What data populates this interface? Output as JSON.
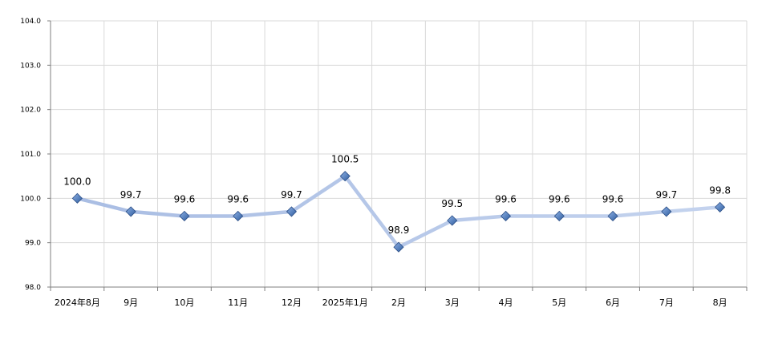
{
  "chart_data": {
    "type": "line",
    "categories": [
      "2024年8月",
      "9月",
      "10月",
      "11月",
      "12月",
      "2025年1月",
      "2月",
      "3月",
      "4月",
      "5月",
      "6月",
      "7月",
      "8月"
    ],
    "values": [
      100.0,
      99.7,
      99.6,
      99.6,
      99.7,
      100.5,
      98.9,
      99.5,
      99.6,
      99.6,
      99.6,
      99.7,
      99.8
    ],
    "value_labels": [
      "100.0",
      "99.7",
      "99.6",
      "99.6",
      "99.7",
      "100.5",
      "98.9",
      "99.5",
      "99.6",
      "99.6",
      "99.6",
      "99.7",
      "99.8"
    ],
    "yticks": [
      "98.0",
      "99.0",
      "100.0",
      "101.0",
      "102.0",
      "103.0",
      "104.0"
    ],
    "ylim": [
      98.0,
      104.0
    ],
    "grid": true,
    "title": "",
    "xlabel": "",
    "ylabel": "",
    "colors": {
      "line": "#b3c6e7",
      "marker": "#4a78b8",
      "grid": "#d9d9d9",
      "axis": "#7f7f7f"
    }
  }
}
